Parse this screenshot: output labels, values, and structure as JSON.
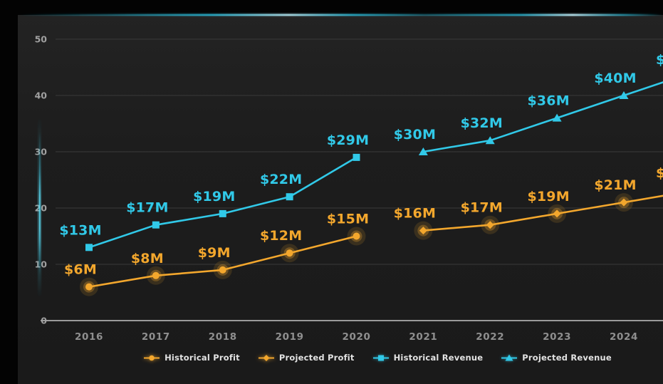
{
  "window": {
    "background": "#050505",
    "panel_background": "#1d1d1d"
  },
  "colors": {
    "profit": "#f3a72d",
    "revenue": "#31c9e8",
    "grid": "#3a3a3a",
    "axis_line": "#9a9a9a",
    "axis_glow": "#ded6f2",
    "top_glow": "#2cc4e4",
    "tick_text": "#a0a0a0",
    "year_text": "#8f8f8f",
    "legend_text": "#e2e2e2"
  },
  "chart_data": {
    "type": "line",
    "title": "",
    "xlabel": "",
    "ylabel": "",
    "grid": true,
    "legend_position": "bottom",
    "x_ticks": [
      "2016",
      "2017",
      "2018",
      "2019",
      "2020",
      "2021",
      "2022",
      "2023",
      "2024"
    ],
    "y_ticks": [
      0,
      10,
      20,
      30,
      40,
      50
    ],
    "ylim": [
      0,
      55
    ],
    "series": [
      {
        "name": "Historical Profit",
        "color": "#f3a72d",
        "marker": "circle",
        "years": [
          2016,
          2017,
          2018,
          2019,
          2020
        ],
        "values": [
          6,
          8,
          9,
          12,
          15
        ],
        "point_labels": [
          "$6M",
          "$8M",
          "$9M",
          "$12M",
          "$15M"
        ],
        "continues_offscreen": false
      },
      {
        "name": "Projected Profit",
        "color": "#f3a72d",
        "marker": "diamond",
        "years": [
          2021,
          2022,
          2023,
          2024
        ],
        "values": [
          16,
          17,
          19,
          21
        ],
        "point_labels": [
          "$16M",
          "$17M",
          "$19M",
          "$21M"
        ],
        "continues_offscreen": true,
        "edge_partial_label": "$"
      },
      {
        "name": "Historical Revenue",
        "color": "#31c9e8",
        "marker": "square",
        "years": [
          2016,
          2017,
          2018,
          2019,
          2020
        ],
        "values": [
          13,
          17,
          19,
          22,
          29
        ],
        "point_labels": [
          "$13M",
          "$17M",
          "$19M",
          "$22M",
          "$29M"
        ],
        "continues_offscreen": false
      },
      {
        "name": "Projected Revenue",
        "color": "#31c9e8",
        "marker": "triangle",
        "years": [
          2021,
          2022,
          2023,
          2024
        ],
        "values": [
          30,
          32,
          36,
          40
        ],
        "point_labels": [
          "$30M",
          "$32M",
          "$36M",
          "$40M"
        ],
        "continues_offscreen": true,
        "edge_partial_label": "$"
      }
    ],
    "legend": [
      {
        "label": "Historical Profit",
        "marker": "circle",
        "color": "#f3a72d"
      },
      {
        "label": "Projected Profit",
        "marker": "diamond",
        "color": "#f3a72d"
      },
      {
        "label": "Historical Revenue",
        "marker": "square",
        "color": "#31c9e8"
      },
      {
        "label": "Projected Revenue",
        "marker": "triangle",
        "color": "#31c9e8"
      }
    ]
  }
}
